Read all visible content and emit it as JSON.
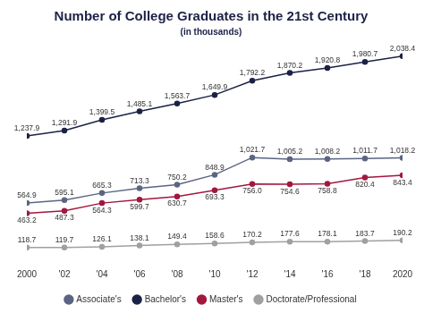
{
  "chart_data": {
    "type": "line",
    "title": "Number of College Graduates in the 21st Century",
    "subtitle": "(in thousands)",
    "categories": [
      "2000",
      "'02",
      "'04",
      "'06",
      "'08",
      "'10",
      "'12",
      "'14",
      "'16",
      "'18",
      "2020"
    ],
    "series": [
      {
        "name": "Associate's",
        "color": "#5b6583",
        "marker": "circle",
        "line_style": "solid",
        "values": [
          564.9,
          595.1,
          665.3,
          713.3,
          750.2,
          848.9,
          1021.7,
          1005.2,
          1008.2,
          1011.7,
          1018.2
        ],
        "value_labels": [
          "564.9",
          "595.1",
          "665.3",
          "713.3",
          "750.2",
          "848.9",
          "1,021.7",
          "1,005.2",
          "1,008.2",
          "1,011.7",
          "1,018.2"
        ]
      },
      {
        "name": "Bachelor's",
        "color": "#1c2146",
        "marker": "circle",
        "line_style": "solid",
        "values": [
          1237.9,
          1291.9,
          1399.5,
          1485.1,
          1563.7,
          1649.9,
          1792.2,
          1870.2,
          1920.8,
          1980.7,
          2038.4
        ],
        "value_labels": [
          "1,237.9",
          "1,291.9",
          "1,399.5",
          "1,485.1",
          "1,563.7",
          "1,649.9",
          "1,792.2",
          "1,870.2",
          "1,920.8",
          "1,980.7",
          "2,038.4"
        ]
      },
      {
        "name": "Master's",
        "color": "#a3173e",
        "marker": "circle",
        "line_style": "solid",
        "values": [
          463.2,
          487.3,
          564.3,
          599.7,
          630.7,
          693.3,
          756.0,
          754.6,
          758.8,
          820.4,
          843.4
        ],
        "value_labels": [
          "463.2",
          "487.3",
          "564.3",
          "599.7",
          "630.7",
          "693.3",
          "756.0",
          "754.6",
          "758.8",
          "820.4",
          "843.4"
        ]
      },
      {
        "name": "Doctorate/Professional",
        "color": "#a0a0a0",
        "marker": "circle",
        "line_style": "solid",
        "values": [
          118.7,
          119.7,
          126.1,
          138.1,
          149.4,
          158.6,
          170.2,
          177.6,
          178.1,
          183.7,
          190.2
        ],
        "value_labels": [
          "118.7",
          "119.7",
          "126.1",
          "138.1",
          "149.4",
          "158.6",
          "170.2",
          "177.6",
          "178.1",
          "183.7",
          "190.2"
        ]
      }
    ],
    "ylim": [
      0,
      2100
    ],
    "grid": false,
    "legend": "bottom",
    "data_labels": true,
    "tick_labels": "x"
  }
}
